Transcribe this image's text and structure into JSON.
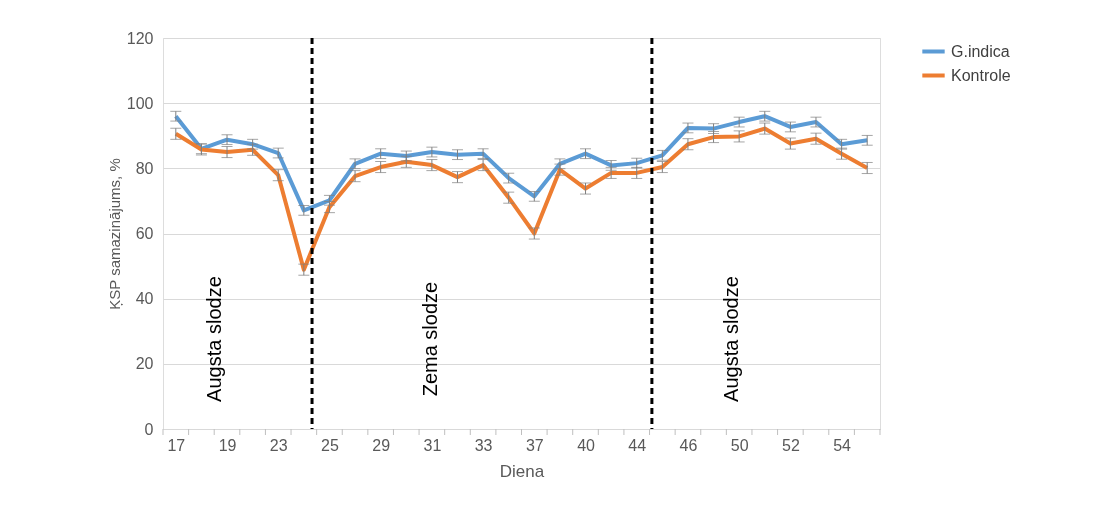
{
  "chart_data": {
    "type": "line",
    "xlabel": "Diena",
    "ylabel": "ĶSP samazinājums, %",
    "categories": [
      "17",
      null,
      "19",
      null,
      "23",
      null,
      "25",
      null,
      "29",
      null,
      "31",
      null,
      "33",
      null,
      "37",
      null,
      "40",
      null,
      "44",
      null,
      "46",
      null,
      "50",
      null,
      "52",
      null,
      "54",
      null
    ],
    "series": [
      {
        "name": "G.indica",
        "color": "#5b9bd5",
        "values": [
          96.0,
          86.0,
          88.8,
          87.4,
          84.7,
          67.1,
          70.2,
          81.4,
          84.5,
          83.8,
          85.0,
          84.2,
          84.5,
          77.0,
          71.4,
          81.4,
          84.5,
          80.9,
          81.6,
          84.0,
          92.4,
          92.2,
          94.2,
          96.0,
          92.7,
          94.2,
          87.4,
          88.6
        ],
        "errors": [
          1.5,
          1.5,
          1.5,
          1.5,
          1.5,
          1.5,
          1.5,
          1.5,
          1.5,
          1.5,
          1.5,
          1.5,
          1.5,
          1.5,
          1.5,
          1.5,
          1.5,
          1.5,
          1.5,
          1.5,
          1.5,
          1.5,
          1.5,
          1.5,
          1.5,
          1.5,
          1.5,
          1.5
        ]
      },
      {
        "name": "Kontrole",
        "color": "#ed7d31",
        "values": [
          90.6,
          85.8,
          85.0,
          85.7,
          77.9,
          48.9,
          68.1,
          77.6,
          80.4,
          82.0,
          81.0,
          77.3,
          81.0,
          71.0,
          60.0,
          79.6,
          73.8,
          78.6,
          78.6,
          80.4,
          87.4,
          89.6,
          89.8,
          92.2,
          87.6,
          89.1,
          84.5,
          80.1
        ],
        "errors": [
          1.7,
          1.7,
          1.7,
          1.7,
          1.7,
          1.7,
          1.7,
          1.7,
          1.7,
          1.7,
          1.7,
          1.7,
          1.7,
          1.7,
          1.7,
          1.7,
          1.7,
          1.7,
          1.7,
          1.7,
          1.7,
          1.7,
          1.7,
          1.7,
          1.7,
          1.7,
          1.7,
          1.7
        ]
      }
    ],
    "ylim": [
      0,
      120
    ],
    "yticks": [
      0,
      20,
      40,
      60,
      80,
      100,
      120
    ],
    "grid": "y",
    "legend": "right",
    "marker": "none",
    "line_style": "solid",
    "annotations": [
      "Augsta slodze",
      "Zema slodze",
      "Augsta slodze"
    ]
  }
}
